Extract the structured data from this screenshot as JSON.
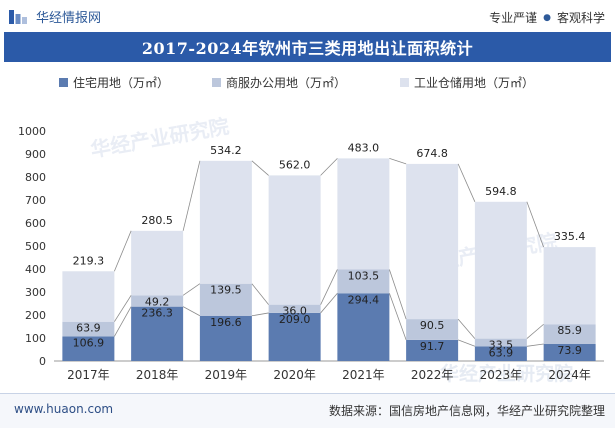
{
  "header": {
    "brand_name": "华经情报网",
    "tagline_left": "专业严谨",
    "tagline_right": "客观科学"
  },
  "title": "2017-2024年钦州市三类用地出让面积统计",
  "watermark": "华经产业研究院",
  "footer": {
    "url": "www.huaon.com",
    "source": "数据来源：国信房地产信息网，华经产业研究院整理"
  },
  "colors": {
    "brand": "#2b5aa8",
    "residential": "#5b7bb0",
    "commercial": "#bcc7dc",
    "industrial": "#dde2ee"
  },
  "chart_data": {
    "type": "bar",
    "stacked": true,
    "categories": [
      "2017年",
      "2018年",
      "2019年",
      "2020年",
      "2021年",
      "2022年",
      "2023年",
      "2024年"
    ],
    "series": [
      {
        "name": "住宅用地（万㎡）",
        "values": [
          106.9,
          236.3,
          196.6,
          209.0,
          294.4,
          91.7,
          63.9,
          73.9
        ],
        "color": "#5b7bb0"
      },
      {
        "name": "商服办公用地（万㎡）",
        "values": [
          63.9,
          49.2,
          139.5,
          36.0,
          103.5,
          90.5,
          33.5,
          85.9
        ],
        "color": "#bcc7dc"
      },
      {
        "name": "工业仓储用地（万㎡）",
        "values": [
          219.3,
          280.5,
          534.2,
          562.0,
          483.0,
          674.8,
          594.8,
          335.4
        ],
        "color": "#dde2ee"
      }
    ],
    "ylim": [
      0,
      1000
    ],
    "yticks": [
      0,
      100,
      200,
      300,
      400,
      500,
      600,
      700,
      800,
      900,
      1000
    ],
    "legend": "top",
    "grid": false,
    "connector_lines": true
  }
}
